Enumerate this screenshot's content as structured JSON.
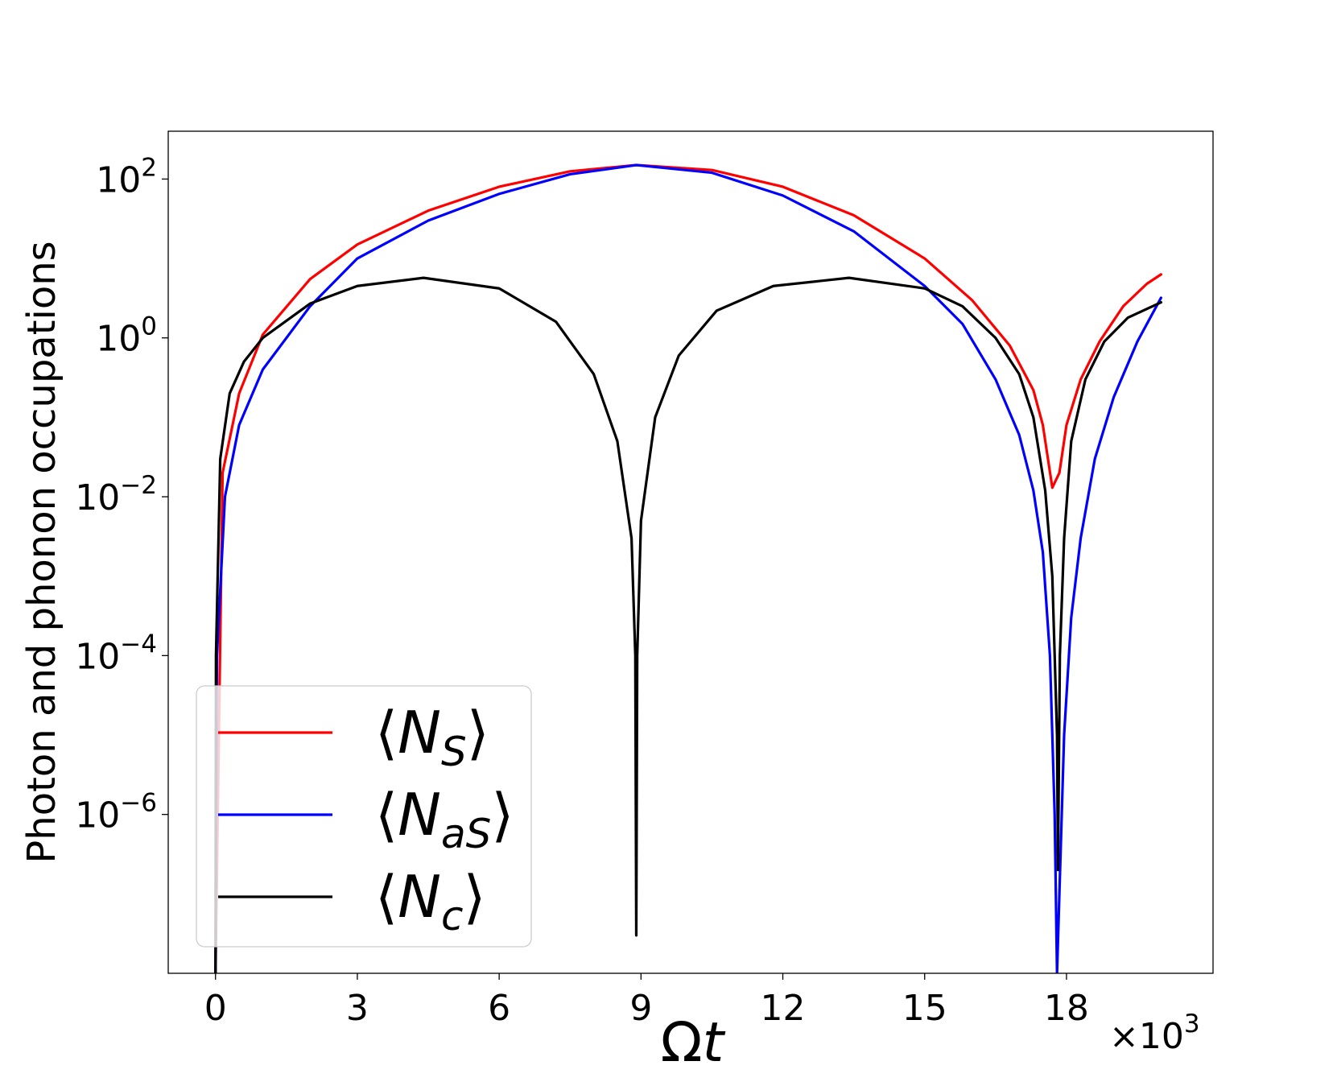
{
  "chart_data": {
    "type": "line",
    "xlabel": "Ωt",
    "xlabel_main": "Ω",
    "xlabel_var": "t",
    "ylabel": "Photon and phonon occupations",
    "x_scale_factor": "×10",
    "x_scale_exp": "3",
    "x_ticks": [
      0,
      3,
      6,
      9,
      12,
      15,
      18
    ],
    "x_tick_labels": [
      "0",
      "3",
      "6",
      "9",
      "12",
      "15",
      "18"
    ],
    "xlim": [
      -1.0,
      21.1
    ],
    "y_scale": "log",
    "ylim": [
      1e-08,
      400
    ],
    "y_ticks": [
      1e-06,
      0.0001,
      0.01,
      1,
      100
    ],
    "y_tick_labels": [
      {
        "base": "10",
        "exp": "−6"
      },
      {
        "base": "10",
        "exp": "−4"
      },
      {
        "base": "10",
        "exp": "−2"
      },
      {
        "base": "10",
        "exp": "0"
      },
      {
        "base": "10",
        "exp": "2"
      }
    ],
    "grid": false,
    "legend_position": "lower-left",
    "series": [
      {
        "name": "⟨NS⟩",
        "name_main": "N",
        "name_sub": "S",
        "color": "#ff0000",
        "x": [
          0,
          0.15,
          0.5,
          1.0,
          2.0,
          3.0,
          4.5,
          6.0,
          7.5,
          8.9,
          10.5,
          12.0,
          13.5,
          15.0,
          16.0,
          16.8,
          17.3,
          17.5,
          17.7,
          17.85,
          18.0,
          18.3,
          18.7,
          19.2,
          19.7,
          20.0
        ],
        "y": [
          1e-08,
          0.02,
          0.2,
          1.1,
          5.5,
          15,
          40,
          80,
          125,
          150,
          130,
          80,
          35,
          10,
          3.0,
          0.8,
          0.22,
          0.08,
          0.013,
          0.02,
          0.08,
          0.3,
          0.9,
          2.5,
          4.8,
          6.3
        ]
      },
      {
        "name": "⟨NaS⟩",
        "name_main": "N",
        "name_sub": "aS",
        "color": "#0000ff",
        "x": [
          0,
          0.03,
          0.2,
          0.5,
          1.0,
          2.0,
          3.0,
          4.5,
          6.0,
          7.5,
          8.9,
          10.5,
          12.0,
          13.5,
          15.0,
          15.8,
          16.5,
          17.0,
          17.3,
          17.5,
          17.65,
          17.75,
          17.8,
          17.85,
          17.95,
          18.1,
          18.3,
          18.6,
          19.0,
          19.5,
          20.0
        ],
        "y": [
          1e-08,
          0.0001,
          0.01,
          0.08,
          0.4,
          2.5,
          10,
          30,
          65,
          115,
          150,
          120,
          62,
          22,
          4.5,
          1.5,
          0.3,
          0.06,
          0.012,
          0.002,
          0.0001,
          1e-06,
          1e-08,
          1e-07,
          1e-05,
          0.0003,
          0.003,
          0.03,
          0.18,
          0.9,
          3.2
        ]
      },
      {
        "name": "⟨Nc⟩",
        "name_main": "N",
        "name_sub": "c",
        "color": "#000000",
        "x": [
          0,
          0.01,
          0.1,
          0.3,
          0.6,
          1.0,
          2.0,
          3.0,
          4.4,
          6.0,
          7.2,
          8.0,
          8.5,
          8.8,
          8.88,
          8.9,
          8.92,
          9.0,
          9.3,
          9.8,
          10.6,
          11.8,
          13.4,
          15.0,
          15.8,
          16.5,
          17.0,
          17.3,
          17.55,
          17.7,
          17.8,
          17.82,
          17.86,
          17.95,
          18.1,
          18.4,
          18.8,
          19.3,
          20.0
        ],
        "y": [
          1e-08,
          0.0001,
          0.03,
          0.2,
          0.5,
          1.0,
          2.7,
          4.5,
          5.7,
          4.2,
          1.6,
          0.35,
          0.05,
          0.003,
          0.0001,
          3e-08,
          0.0001,
          0.005,
          0.1,
          0.6,
          2.2,
          4.5,
          5.7,
          4.2,
          2.5,
          1.0,
          0.35,
          0.1,
          0.012,
          0.001,
          1e-05,
          2e-07,
          0.0001,
          0.003,
          0.05,
          0.3,
          0.9,
          1.8,
          2.8
        ]
      }
    ]
  }
}
